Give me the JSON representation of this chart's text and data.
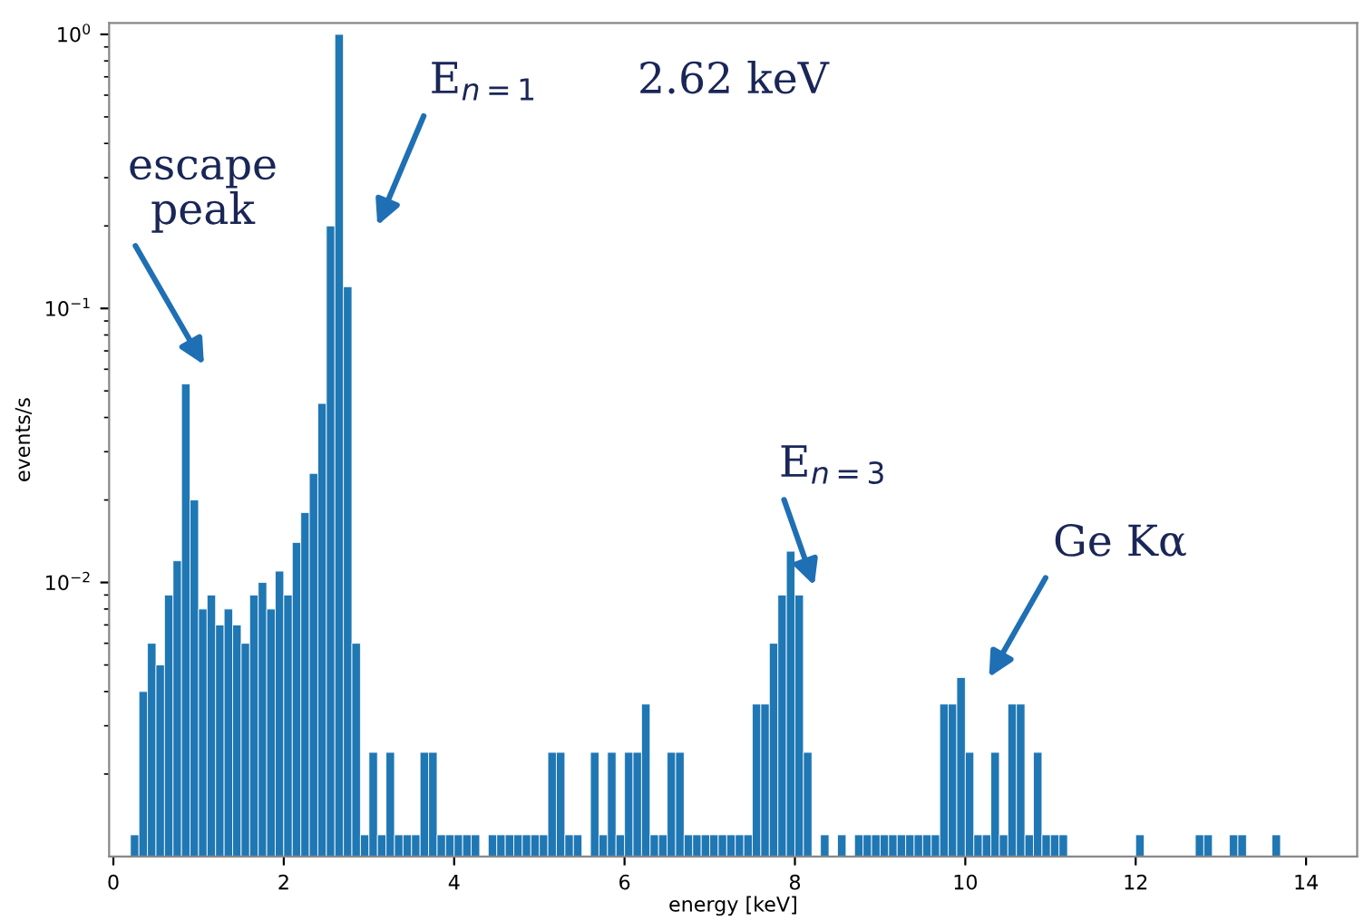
{
  "chart_data": {
    "type": "histogram",
    "xlabel": "energy [keV]",
    "ylabel": "events/s",
    "log": "y",
    "grid": false,
    "legend": false,
    "color": "#1f77b4",
    "xlim": [
      -0.05,
      14.6
    ],
    "xticks": [
      0,
      2,
      4,
      6,
      8,
      10,
      12,
      14
    ],
    "ylim": [
      0.001,
      1.1
    ],
    "yticks": [
      {
        "value": 1,
        "label": "10$^{0}$"
      },
      {
        "value": 0.1,
        "label": "10$^{−1}$"
      },
      {
        "value": 0.01,
        "label": "10$^{−2}$"
      }
    ],
    "bins": [
      0.2,
      0.3,
      0.4,
      0.5,
      0.6,
      0.7,
      0.8,
      0.9,
      1.0,
      1.1,
      1.2,
      1.3,
      1.4,
      1.5,
      1.6,
      1.7,
      1.8,
      1.9,
      2.0,
      2.1,
      2.2,
      2.3,
      2.4,
      2.5,
      2.6,
      2.7,
      2.8,
      2.9,
      3.0,
      3.1,
      3.2,
      3.3,
      3.4,
      3.5,
      3.6,
      3.7,
      3.8,
      3.9,
      4.0,
      4.1,
      4.2,
      4.3,
      4.4,
      4.5,
      4.6,
      4.7,
      4.8,
      4.9,
      5.0,
      5.1,
      5.2,
      5.3,
      5.4,
      5.5,
      5.6,
      5.7,
      5.8,
      5.9,
      6.0,
      6.1,
      6.2,
      6.3,
      6.4,
      6.5,
      6.6,
      6.7,
      6.8,
      6.9,
      7.0,
      7.1,
      7.2,
      7.3,
      7.4,
      7.5,
      7.6,
      7.7,
      7.8,
      7.9,
      8.0,
      8.1,
      8.2,
      8.3,
      8.4,
      8.5,
      8.6,
      8.7,
      8.8,
      8.9,
      9.0,
      9.1,
      9.2,
      9.3,
      9.4,
      9.5,
      9.6,
      9.7,
      9.8,
      9.9,
      10.0,
      10.1,
      10.2,
      10.3,
      10.4,
      10.5,
      10.6,
      10.7,
      10.8,
      10.9,
      11.0,
      11.1,
      11.2,
      11.3,
      11.4,
      11.5,
      11.6,
      11.7,
      11.8,
      11.9,
      12.0,
      12.1,
      12.2,
      12.3,
      12.4,
      12.5,
      12.6,
      12.7,
      12.8,
      12.9,
      13.0,
      13.1,
      13.2,
      13.3,
      13.4,
      13.5,
      13.6,
      13.7
    ],
    "values": [
      0.0012,
      0.004,
      0.006,
      0.005,
      0.009,
      0.012,
      0.053,
      0.02,
      0.008,
      0.009,
      0.007,
      0.008,
      0.007,
      0.006,
      0.009,
      0.01,
      0.008,
      0.011,
      0.009,
      0.014,
      0.018,
      0.025,
      0.045,
      0.2,
      1.0,
      0.12,
      0.006,
      0.0012,
      0.0024,
      0.0012,
      0.0024,
      0.0012,
      0.0012,
      0.0012,
      0.0024,
      0.0024,
      0.0012,
      0.0012,
      0.0012,
      0.0012,
      0.0012,
      null,
      0.0012,
      0.0012,
      0.0012,
      0.0012,
      0.0012,
      0.0012,
      0.0012,
      0.0024,
      0.0024,
      0.0012,
      0.0012,
      null,
      0.0024,
      0.0012,
      0.0024,
      0.0012,
      0.0024,
      0.0024,
      0.0036,
      0.0012,
      0.0012,
      0.0024,
      0.0024,
      0.0012,
      0.0012,
      0.0012,
      0.0012,
      0.0012,
      0.0012,
      0.0012,
      0.0012,
      0.0036,
      0.0036,
      0.006,
      0.009,
      0.013,
      0.009,
      0.0024,
      null,
      0.0012,
      null,
      0.0012,
      null,
      0.0012,
      0.0012,
      0.0012,
      0.0012,
      0.0012,
      0.0012,
      0.0012,
      0.0012,
      0.0012,
      0.0012,
      0.0036,
      0.0036,
      0.0045,
      0.0024,
      0.0012,
      0.0012,
      0.0024,
      0.0012,
      0.0036,
      0.0036,
      0.0012,
      0.0024,
      0.0012,
      0.0012,
      0.0012,
      null,
      null,
      null,
      null,
      null,
      null,
      null,
      null,
      0.0012,
      null,
      null,
      null,
      null,
      null,
      null,
      0.0012,
      0.0012,
      null,
      null,
      0.0012,
      0.0012,
      null,
      null,
      null,
      0.0012
    ],
    "annotations": [
      "escape\npeak",
      "E$_{n=1}$",
      "2.62 keV",
      "E$_{n=3}$",
      "Ge Kα"
    ]
  }
}
